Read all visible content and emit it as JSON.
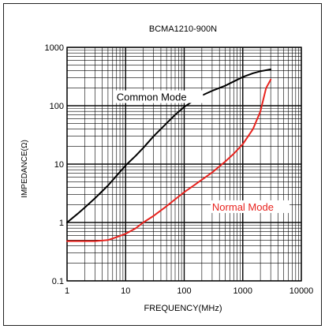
{
  "chart_data": {
    "type": "line",
    "title": "BCMA1210-900N",
    "xlabel": "FREQUENCY(MHz)",
    "ylabel": "IMPEDANCE(Ω)",
    "x_scale": "log",
    "y_scale": "log",
    "xlim": [
      1,
      10000
    ],
    "ylim": [
      0.1,
      1000
    ],
    "x_ticks": [
      "1",
      "10",
      "100",
      "1000",
      "10000"
    ],
    "y_ticks": [
      "0.1",
      "1",
      "10",
      "100",
      "1000"
    ],
    "grid": true,
    "series": [
      {
        "name": "Common Mode",
        "color": "#000000",
        "x": [
          1,
          1.5,
          2,
          3,
          5,
          7,
          10,
          15,
          20,
          30,
          50,
          70,
          100,
          150,
          200,
          300,
          500,
          700,
          1000,
          1500,
          2000,
          3000
        ],
        "y": [
          1.0,
          1.4,
          1.8,
          2.6,
          4.3,
          6.3,
          9.5,
          14,
          19,
          30,
          50,
          70,
          95,
          125,
          150,
          180,
          220,
          260,
          310,
          360,
          390,
          420
        ]
      },
      {
        "name": "Normal Mode",
        "color": "#e8231e",
        "x": [
          1,
          2,
          3,
          5,
          7,
          10,
          15,
          20,
          30,
          50,
          70,
          100,
          150,
          200,
          300,
          500,
          700,
          1000,
          1500,
          2000,
          2500,
          3000
        ],
        "y": [
          0.48,
          0.48,
          0.48,
          0.5,
          0.56,
          0.64,
          0.8,
          1.0,
          1.3,
          1.9,
          2.5,
          3.3,
          4.4,
          5.4,
          7.2,
          11,
          15,
          22,
          40,
          80,
          200,
          280
        ]
      }
    ]
  }
}
